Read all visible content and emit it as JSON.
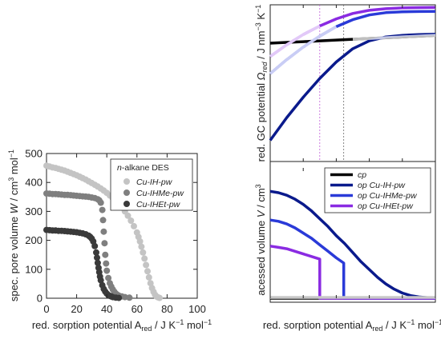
{
  "chart_data": [
    {
      "type": "scatter",
      "xlabel": "red. sorption potential A",
      "xlabel_sub": "red",
      "xlabel_unit": " / J K",
      "xlabel_unit_sup": "−1",
      "xlabel_unit2": " mol",
      "xlabel_unit2_sup": "−1",
      "ylabel": "spec. pore volume ",
      "ylabel_sym": "W",
      "ylabel_unit": " / cm",
      "ylabel_unit_sup": "3",
      "ylabel_unit2": " mol",
      "ylabel_unit2_sup": "−1",
      "xlim": [
        0,
        100
      ],
      "ylim": [
        0,
        500
      ],
      "xticks": [
        "0",
        "20",
        "40",
        "60",
        "80",
        "100"
      ],
      "yticks": [
        "0",
        "100",
        "200",
        "300",
        "400",
        "500"
      ],
      "legend_title_prefix": "n",
      "legend_title": "-alkane DES",
      "legend_position": "top-right",
      "series": [
        {
          "name": "Cu-IH-pw",
          "color": "#c4c4c4",
          "x": [
            0,
            2,
            4,
            6,
            8,
            10,
            12,
            14,
            16,
            18,
            20,
            22,
            24,
            26,
            28,
            30,
            32,
            34,
            36,
            38,
            40,
            42,
            44,
            46,
            48,
            50,
            52,
            54,
            56,
            58,
            60,
            61,
            62,
            63,
            64,
            65,
            66,
            67,
            68,
            69,
            70,
            71,
            72,
            73,
            74,
            75
          ],
          "y": [
            458,
            455,
            452,
            450,
            447,
            444,
            441,
            437,
            433,
            429,
            425,
            420,
            415,
            410,
            404,
            398,
            392,
            386,
            379,
            372,
            364,
            355,
            346,
            336,
            325,
            313,
            300,
            285,
            268,
            249,
            227,
            212,
            196,
            178,
            158,
            137,
            115,
            93,
            72,
            52,
            35,
            22,
            12,
            6,
            3,
            1
          ]
        },
        {
          "name": "Cu-IHMe-pw",
          "color": "#7f7f7f",
          "x": [
            0,
            2,
            4,
            6,
            8,
            10,
            12,
            14,
            16,
            18,
            20,
            22,
            24,
            26,
            28,
            30,
            32,
            34,
            35,
            36,
            37,
            37.5,
            38,
            38.5,
            39,
            39.5,
            40,
            41,
            42,
            43,
            44,
            45,
            46,
            47,
            48,
            50,
            52,
            55
          ],
          "y": [
            362,
            361,
            360,
            360,
            359,
            358,
            357,
            357,
            356,
            355,
            354,
            353,
            352,
            351,
            350,
            348,
            346,
            342,
            338,
            330,
            305,
            270,
            230,
            190,
            150,
            120,
            95,
            70,
            52,
            40,
            30,
            22,
            16,
            12,
            9,
            6,
            4,
            2
          ]
        },
        {
          "name": "Cu-IHEt-pw",
          "color": "#3a3a3a",
          "x": [
            0,
            2,
            4,
            6,
            8,
            10,
            12,
            14,
            16,
            18,
            20,
            22,
            24,
            26,
            28,
            29,
            30,
            31,
            32,
            33,
            33.5,
            34,
            34.5,
            35,
            35.5,
            36,
            37,
            38,
            39,
            40,
            41,
            42,
            43,
            44,
            46,
            48
          ],
          "y": [
            236,
            235,
            234,
            234,
            233,
            233,
            232,
            231,
            230,
            229,
            228,
            226,
            224,
            221,
            216,
            212,
            206,
            196,
            180,
            158,
            140,
            122,
            105,
            90,
            75,
            62,
            45,
            32,
            23,
            16,
            11,
            8,
            6,
            4,
            2,
            1
          ]
        }
      ]
    },
    {
      "type": "line",
      "panel": "top-right",
      "ylabel": "red. GC potential ",
      "ylabel_sym": "Ω",
      "ylabel_sym_sub": "red",
      "ylabel_unit": " / J nm",
      "ylabel_unit_sup": "−3",
      "ylabel_unit2": " K",
      "ylabel_unit2_sup": "−1",
      "xlim": [
        0,
        100
      ],
      "ylim": [
        0,
        1
      ],
      "markers": [
        {
          "x": 30.0,
          "style": "dashed",
          "color": "#c05ad8"
        },
        {
          "x": 44.5,
          "style": "dashed",
          "color": "#6a6a6a"
        }
      ],
      "series": [
        {
          "name": "cp",
          "color": "#000000",
          "x": [
            0,
            10,
            20,
            30,
            40,
            50,
            60,
            70,
            80,
            90,
            100
          ],
          "y": [
            0.755,
            0.76,
            0.765,
            0.77,
            0.775,
            0.78,
            0.785,
            0.79,
            0.795,
            0.8,
            0.805
          ]
        },
        {
          "name": "op Cu-IH-pw",
          "color": "#0a1a8c",
          "x": [
            0,
            10,
            20,
            30,
            40,
            50,
            60,
            70,
            80,
            90,
            100
          ],
          "y": [
            0.135,
            0.28,
            0.41,
            0.53,
            0.635,
            0.72,
            0.77,
            0.795,
            0.805,
            0.81,
            0.812
          ]
        },
        {
          "name": "op Cu-IHMe-pw",
          "color": "#2a3ad8",
          "x": [
            0,
            10,
            20,
            30,
            40,
            50,
            60,
            70,
            80,
            90,
            100
          ],
          "y": [
            0.56,
            0.65,
            0.73,
            0.8,
            0.86,
            0.905,
            0.935,
            0.95,
            0.955,
            0.957,
            0.958
          ]
        },
        {
          "name": "op Cu-IHEt-pw",
          "color": "#8a2be2",
          "x": [
            0,
            10,
            20,
            30,
            40,
            50,
            60,
            70,
            80,
            90,
            100
          ],
          "y": [
            0.67,
            0.745,
            0.81,
            0.865,
            0.91,
            0.945,
            0.965,
            0.975,
            0.98,
            0.982,
            0.983
          ]
        }
      ]
    },
    {
      "type": "line",
      "panel": "bottom-right",
      "xlabel": "red. sorption potential A",
      "xlabel_sub": "red",
      "xlabel_unit": " / J K",
      "xlabel_unit_sup": "−1",
      "xlabel_unit2": " mol",
      "xlabel_unit2_sup": "−1",
      "ylabel": "acessed volume  ",
      "ylabel_sym": "V",
      "ylabel_unit": " / cm",
      "ylabel_unit_sup": "3",
      "xlim": [
        0,
        100
      ],
      "ylim": [
        0,
        1
      ],
      "legend_position": "top-right",
      "series": [
        {
          "name": "cp",
          "color": "#000000",
          "x": [
            0,
            100
          ],
          "y": [
            0.0,
            0.0
          ]
        },
        {
          "name": "op Cu-IH-pw",
          "color": "#0a1a8c",
          "x": [
            0,
            5,
            10,
            15,
            20,
            25,
            30,
            35,
            40,
            45,
            50,
            55,
            60,
            65,
            70,
            75,
            80,
            85,
            90,
            95,
            100
          ],
          "y": [
            0.82,
            0.81,
            0.79,
            0.76,
            0.72,
            0.67,
            0.61,
            0.55,
            0.48,
            0.42,
            0.35,
            0.28,
            0.22,
            0.16,
            0.11,
            0.07,
            0.04,
            0.02,
            0.01,
            0.005,
            0.0
          ]
        },
        {
          "name": "op Cu-IHMe-pw",
          "color": "#2a3ad8",
          "x": [
            0,
            5,
            10,
            15,
            20,
            25,
            30,
            35,
            40,
            44.5,
            44.5,
            100
          ],
          "y": [
            0.6,
            0.59,
            0.57,
            0.54,
            0.5,
            0.46,
            0.41,
            0.36,
            0.31,
            0.27,
            0.0,
            0.0
          ]
        },
        {
          "name": "op Cu-IHEt-pw",
          "color": "#8a2be2",
          "x": [
            0,
            5,
            10,
            15,
            20,
            25,
            30,
            30,
            100
          ],
          "y": [
            0.4,
            0.39,
            0.38,
            0.36,
            0.34,
            0.32,
            0.3,
            0.0,
            0.0
          ]
        }
      ]
    }
  ]
}
